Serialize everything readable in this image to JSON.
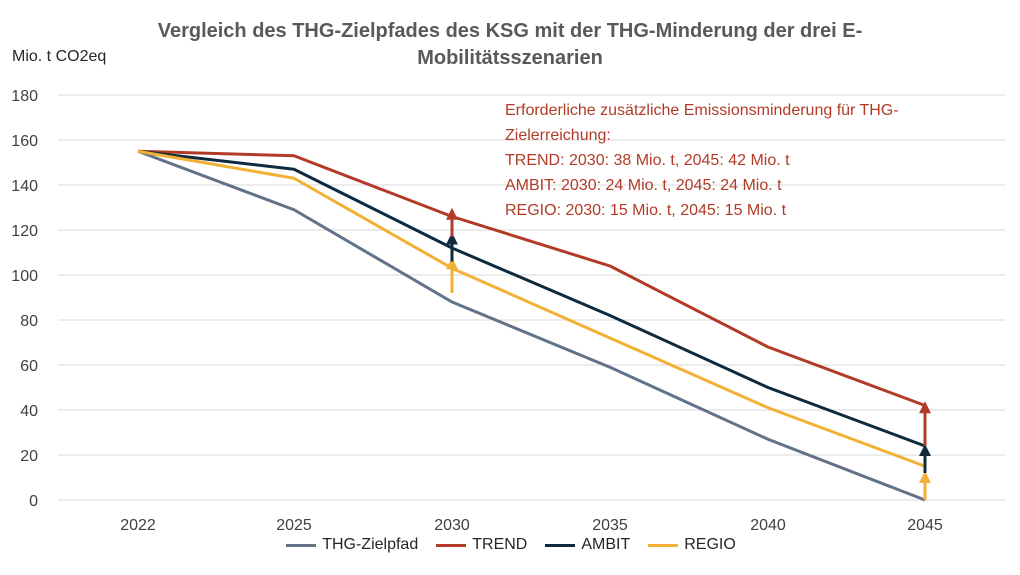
{
  "chart_data": {
    "type": "line",
    "title": "Vergleich des THG-Zielpfades des KSG mit der THG-Minderung der drei E-Mobilitätsszenarien",
    "ylabel": "Mio. t CO2eq",
    "xlabel": "",
    "ylim": [
      0,
      180
    ],
    "y_ticks": [
      "0",
      "20",
      "40",
      "60",
      "80",
      "100",
      "120",
      "140",
      "160",
      "180"
    ],
    "x": [
      "2022",
      "2025",
      "2030",
      "2035",
      "2040",
      "2045"
    ],
    "grid": true,
    "legend_position": "bottom",
    "series": [
      {
        "name": "THG-Zielpfad",
        "color": "#627287",
        "values": [
          155,
          129,
          88,
          59,
          27,
          0
        ]
      },
      {
        "name": "TREND",
        "color": "#B23B27",
        "values": [
          155,
          153,
          126,
          104,
          68,
          42
        ]
      },
      {
        "name": "AMBIT",
        "color": "#0E2A3D",
        "values": [
          155,
          147,
          112,
          82,
          50,
          24
        ]
      },
      {
        "name": "REGIO",
        "color": "#F2B134",
        "values": [
          155,
          143,
          103,
          72,
          41,
          15
        ]
      }
    ],
    "annotation": {
      "color": "#B23B27",
      "lines": [
        "Erforderliche zusätzliche Emissionsminderung für THG-",
        "Zielerreichung:",
        "TREND: 2030: 38 Mio. t, 2045: 42 Mio. t",
        "AMBIT: 2030: 24 Mio. t, 2045: 24 Mio. t",
        "REGIO: 2030: 15 Mio. t, 2045: 15 Mio. t"
      ]
    },
    "arrows": [
      {
        "series": "REGIO",
        "x": "2030",
        "from": 92,
        "to": 107
      },
      {
        "series": "AMBIT",
        "x": "2030",
        "from": 106,
        "to": 118
      },
      {
        "series": "TREND",
        "x": "2030",
        "from": 117,
        "to": 129
      },
      {
        "series": "REGIO",
        "x": "2045",
        "from": 0,
        "to": 12
      },
      {
        "series": "AMBIT",
        "x": "2045",
        "from": 12,
        "to": 24
      },
      {
        "series": "TREND",
        "x": "2045",
        "from": 24,
        "to": 43
      }
    ]
  }
}
